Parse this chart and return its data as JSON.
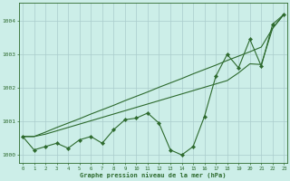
{
  "x": [
    0,
    1,
    2,
    3,
    4,
    5,
    6,
    7,
    8,
    9,
    10,
    11,
    12,
    13,
    14,
    15,
    16,
    17,
    18,
    19,
    20,
    21,
    22,
    23
  ],
  "line_jagged": [
    1000.55,
    1000.15,
    1000.25,
    1000.35,
    1000.2,
    1000.45,
    1000.55,
    1000.35,
    1000.75,
    1001.05,
    1001.1,
    1001.25,
    1000.95,
    1000.15,
    1000.0,
    1000.25,
    1001.15,
    1002.35,
    1003.0,
    1002.6,
    1003.45,
    1002.65,
    1003.9,
    1004.2
  ],
  "line_upper": [
    1000.55,
    1000.55,
    1000.68,
    1000.82,
    1000.95,
    1001.08,
    1001.22,
    1001.35,
    1001.48,
    1001.62,
    1001.75,
    1001.88,
    1002.02,
    1002.15,
    1002.28,
    1002.42,
    1002.55,
    1002.68,
    1002.82,
    1002.95,
    1003.08,
    1003.22,
    1003.78,
    1004.2
  ],
  "line_lower": [
    1000.55,
    1000.55,
    1000.62,
    1000.72,
    1000.82,
    1000.92,
    1001.02,
    1001.12,
    1001.22,
    1001.32,
    1001.42,
    1001.52,
    1001.62,
    1001.72,
    1001.82,
    1001.92,
    1002.02,
    1002.12,
    1002.22,
    1002.45,
    1002.72,
    1002.7,
    1003.78,
    1004.2
  ],
  "line_color": "#2d6a2d",
  "background_color": "#cceee8",
  "grid_color": "#aacccc",
  "xlabel": "Graphe pression niveau de la mer (hPa)",
  "ylim": [
    999.75,
    1004.55
  ],
  "yticks": [
    1000,
    1001,
    1002,
    1003,
    1004
  ],
  "xticks": [
    0,
    1,
    2,
    3,
    4,
    5,
    6,
    7,
    8,
    9,
    10,
    11,
    12,
    13,
    14,
    15,
    16,
    17,
    18,
    19,
    20,
    21,
    22,
    23
  ]
}
